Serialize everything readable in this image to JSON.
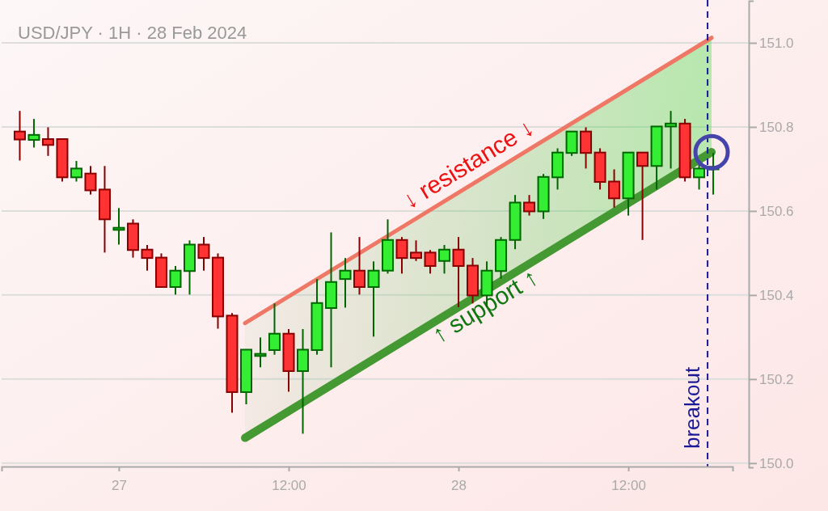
{
  "chart_data": {
    "type": "candlestick",
    "title": "USD/JPY · 1H · 28 Feb 2024",
    "x": [
      "2024-02-26T17:00",
      "2024-02-26T18:00",
      "2024-02-26T19:00",
      "2024-02-26T20:00",
      "2024-02-26T21:00",
      "2024-02-26T22:00",
      "2024-02-26T23:00",
      "2024-02-27T00:00",
      "2024-02-27T01:00",
      "2024-02-27T02:00",
      "2024-02-27T03:00",
      "2024-02-27T04:00",
      "2024-02-27T05:00",
      "2024-02-27T06:00",
      "2024-02-27T07:00",
      "2024-02-27T08:00",
      "2024-02-27T09:00",
      "2024-02-27T10:00",
      "2024-02-27T11:00",
      "2024-02-27T12:00",
      "2024-02-27T13:00",
      "2024-02-27T14:00",
      "2024-02-27T15:00",
      "2024-02-27T16:00",
      "2024-02-27T17:00",
      "2024-02-27T18:00",
      "2024-02-27T19:00",
      "2024-02-27T20:00",
      "2024-02-27T21:00",
      "2024-02-27T22:00",
      "2024-02-27T23:00",
      "2024-02-28T00:00",
      "2024-02-28T01:00",
      "2024-02-28T02:00",
      "2024-02-28T03:00",
      "2024-02-28T04:00",
      "2024-02-28T05:00",
      "2024-02-28T06:00",
      "2024-02-28T07:00",
      "2024-02-28T08:00",
      "2024-02-28T09:00",
      "2024-02-28T10:00",
      "2024-02-28T11:00",
      "2024-02-28T12:00",
      "2024-02-28T13:00",
      "2024-02-28T14:00",
      "2024-02-28T15:00",
      "2024-02-28T16:00",
      "2024-02-28T17:00",
      "2024-02-28T18:00"
    ],
    "ohlc": [
      [
        150.789,
        150.838,
        150.72,
        150.77
      ],
      [
        150.769,
        150.819,
        150.751,
        150.781
      ],
      [
        150.771,
        150.799,
        150.731,
        150.757
      ],
      [
        150.771,
        150.771,
        150.67,
        150.68
      ],
      [
        150.68,
        150.719,
        150.67,
        150.701
      ],
      [
        150.689,
        150.707,
        150.639,
        150.649
      ],
      [
        150.651,
        150.707,
        150.501,
        150.58
      ],
      [
        150.555,
        150.607,
        150.52,
        150.56
      ],
      [
        150.57,
        150.58,
        150.489,
        150.507
      ],
      [
        150.508,
        150.519,
        150.458,
        150.488
      ],
      [
        150.489,
        150.499,
        150.418,
        150.419
      ],
      [
        150.419,
        150.469,
        150.401,
        150.458
      ],
      [
        150.457,
        150.53,
        150.401,
        150.52
      ],
      [
        150.52,
        150.538,
        150.458,
        150.488
      ],
      [
        150.489,
        150.499,
        150.32,
        150.349
      ],
      [
        150.351,
        150.357,
        150.12,
        150.169
      ],
      [
        150.169,
        150.27,
        150.14,
        150.27
      ],
      [
        150.255,
        150.299,
        150.228,
        150.26
      ],
      [
        150.269,
        150.38,
        150.258,
        150.308
      ],
      [
        150.308,
        150.319,
        150.17,
        150.219
      ],
      [
        150.219,
        150.319,
        150.07,
        150.27
      ],
      [
        150.269,
        150.438,
        150.258,
        150.381
      ],
      [
        150.369,
        150.549,
        150.228,
        150.431
      ],
      [
        150.438,
        150.488,
        150.37,
        150.458
      ],
      [
        150.458,
        150.538,
        150.401,
        150.419
      ],
      [
        150.419,
        150.48,
        150.301,
        150.458
      ],
      [
        150.458,
        150.58,
        150.451,
        150.531
      ],
      [
        150.531,
        150.538,
        150.451,
        150.488
      ],
      [
        150.501,
        150.53,
        150.481,
        150.488
      ],
      [
        150.501,
        150.507,
        150.451,
        150.469
      ],
      [
        150.481,
        150.519,
        150.451,
        150.508
      ],
      [
        150.508,
        150.538,
        150.371,
        150.469
      ],
      [
        150.47,
        150.488,
        150.38,
        150.399
      ],
      [
        150.399,
        150.48,
        150.371,
        150.458
      ],
      [
        150.457,
        150.538,
        150.439,
        150.531
      ],
      [
        150.531,
        150.638,
        150.509,
        150.62
      ],
      [
        150.62,
        150.638,
        150.589,
        150.599
      ],
      [
        150.599,
        150.688,
        150.581,
        150.681
      ],
      [
        150.68,
        150.749,
        150.651,
        150.739
      ],
      [
        150.738,
        150.789,
        150.731,
        150.789
      ],
      [
        150.789,
        150.799,
        150.701,
        150.738
      ],
      [
        150.739,
        150.749,
        150.651,
        150.669
      ],
      [
        150.67,
        150.699,
        150.608,
        150.63
      ],
      [
        150.63,
        150.739,
        150.589,
        150.739
      ],
      [
        150.739,
        150.739,
        150.531,
        150.707
      ],
      [
        150.707,
        150.801,
        150.651,
        150.801
      ],
      [
        150.801,
        150.838,
        150.701,
        150.808
      ],
      [
        150.808,
        150.819,
        150.67,
        150.68
      ],
      [
        150.68,
        150.717,
        150.651,
        150.701
      ],
      [
        150.699,
        150.738,
        150.639,
        150.705
      ]
    ],
    "xlim": [
      "2024-02-26T15:43",
      "2024-02-28T19:22"
    ],
    "xticks": [
      {
        "value": "2024-02-27T00:00",
        "label": "27"
      },
      {
        "value": "2024-02-27T12:00",
        "label": "12:00"
      },
      {
        "value": "2024-02-28T00:00",
        "label": "28"
      },
      {
        "value": "2024-02-28T12:00",
        "label": "12:00"
      }
    ],
    "ylim": [
      149.99,
      151.1
    ],
    "yticks": [
      {
        "value": 150.0,
        "label": "150.0"
      },
      {
        "value": 150.2,
        "label": "150.2"
      },
      {
        "value": 150.4,
        "label": "150.4"
      },
      {
        "value": 150.6,
        "label": "150.6"
      },
      {
        "value": 150.8,
        "label": "150.8"
      },
      {
        "value": 151.0,
        "label": "151.0"
      }
    ],
    "grid": "y",
    "series": [
      {
        "type": "line",
        "name": "↓ resistance ↓",
        "color": "#ee7766",
        "x": [
          "2024-02-27T08:55",
          "2024-02-28T17:53"
        ],
        "values": [
          150.333,
          151.012
        ]
      },
      {
        "type": "line",
        "name": "↑ support ↑",
        "color": "#449933",
        "x": [
          "2024-02-27T08:55",
          "2024-02-28T17:53"
        ],
        "values": [
          150.06,
          150.74
        ],
        "lower": [
          150.06,
          150.74
        ],
        "upper": [
          150.333,
          151.012
        ]
      }
    ],
    "ref_lines": [
      {
        "axis": "x",
        "value": "2024-02-28T17:36",
        "label": "breakout",
        "color": "#1a1a99",
        "line_style": "dashed"
      }
    ]
  }
}
